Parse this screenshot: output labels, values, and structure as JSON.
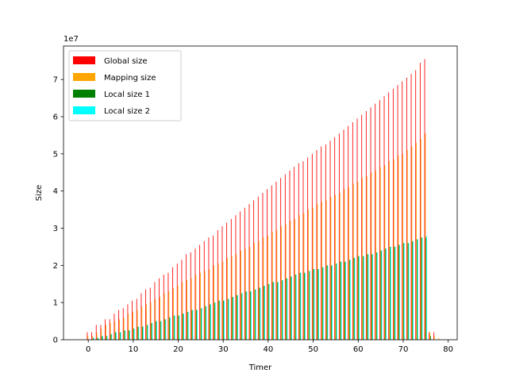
{
  "chart_data": {
    "type": "bar",
    "xlabel": "Timer",
    "ylabel": "Size",
    "offset_label": "1e7",
    "xlim": [
      -5.5,
      82
    ],
    "ylim": [
      0,
      7.9
    ],
    "xticks": [
      0,
      10,
      20,
      30,
      40,
      50,
      60,
      70,
      80
    ],
    "yticks": [
      0,
      1,
      2,
      3,
      4,
      5,
      6,
      7
    ],
    "y_unit_multiplier": 10000000,
    "legend_position": "top-left",
    "x": [
      0,
      1,
      2,
      3,
      4,
      5,
      6,
      7,
      8,
      9,
      10,
      11,
      12,
      13,
      14,
      15,
      16,
      17,
      18,
      19,
      20,
      21,
      22,
      23,
      24,
      25,
      26,
      27,
      28,
      29,
      30,
      31,
      32,
      33,
      34,
      35,
      36,
      37,
      38,
      39,
      40,
      41,
      42,
      43,
      44,
      45,
      46,
      47,
      48,
      49,
      50,
      51,
      52,
      53,
      54,
      55,
      56,
      57,
      58,
      59,
      60,
      61,
      62,
      63,
      64,
      65,
      66,
      67,
      68,
      69,
      70,
      71,
      72,
      73,
      74,
      75,
      76,
      77,
      78
    ],
    "series": [
      {
        "name": "Global size",
        "color": "#ff0000",
        "values": [
          0.2,
          0.2,
          0.4,
          0.4,
          0.55,
          0.55,
          0.7,
          0.8,
          0.85,
          0.95,
          1.05,
          1.1,
          1.25,
          1.35,
          1.4,
          1.55,
          1.65,
          1.75,
          1.8,
          1.95,
          2.05,
          2.15,
          2.3,
          2.35,
          2.45,
          2.55,
          2.65,
          2.75,
          2.8,
          2.95,
          3.05,
          3.15,
          3.25,
          3.35,
          3.45,
          3.55,
          3.65,
          3.75,
          3.85,
          3.95,
          4.05,
          4.15,
          4.25,
          4.35,
          4.45,
          4.55,
          4.65,
          4.75,
          4.8,
          4.9,
          5.0,
          5.1,
          5.2,
          5.25,
          5.35,
          5.45,
          5.55,
          5.65,
          5.75,
          5.85,
          5.95,
          6.05,
          6.15,
          6.25,
          6.35,
          6.45,
          6.55,
          6.65,
          6.75,
          6.85,
          6.95,
          7.05,
          7.15,
          7.25,
          7.45,
          7.55,
          0.2,
          0.2,
          0.0
        ]
      },
      {
        "name": "Mapping size",
        "color": "#ffa500",
        "values": [
          0.1,
          0.1,
          0.2,
          0.3,
          0.4,
          0.45,
          0.5,
          0.55,
          0.6,
          0.7,
          0.75,
          0.8,
          0.9,
          0.95,
          1.0,
          1.1,
          1.15,
          1.25,
          1.3,
          1.4,
          1.45,
          1.55,
          1.6,
          1.65,
          1.75,
          1.8,
          1.85,
          1.9,
          2.0,
          2.05,
          2.1,
          2.2,
          2.25,
          2.3,
          2.4,
          2.45,
          2.5,
          2.6,
          2.65,
          2.75,
          2.8,
          2.9,
          2.95,
          3.05,
          3.1,
          3.2,
          3.25,
          3.35,
          3.4,
          3.5,
          3.55,
          3.65,
          3.7,
          3.75,
          3.85,
          3.9,
          3.95,
          4.05,
          4.1,
          4.2,
          4.25,
          4.35,
          4.4,
          4.5,
          4.55,
          4.65,
          4.7,
          4.8,
          4.85,
          4.95,
          5.0,
          5.1,
          5.2,
          5.3,
          5.4,
          5.55,
          0.2,
          0.1,
          0.05
        ]
      },
      {
        "name": "Local size 1",
        "color": "#008000",
        "values": [
          0.0,
          0.05,
          0.05,
          0.1,
          0.1,
          0.15,
          0.2,
          0.2,
          0.25,
          0.25,
          0.3,
          0.35,
          0.35,
          0.4,
          0.45,
          0.5,
          0.5,
          0.55,
          0.6,
          0.65,
          0.65,
          0.7,
          0.75,
          0.8,
          0.8,
          0.85,
          0.9,
          0.95,
          1.0,
          1.05,
          1.05,
          1.1,
          1.15,
          1.2,
          1.25,
          1.3,
          1.3,
          1.35,
          1.4,
          1.45,
          1.5,
          1.55,
          1.55,
          1.6,
          1.65,
          1.7,
          1.75,
          1.8,
          1.8,
          1.85,
          1.9,
          1.9,
          1.95,
          2.0,
          2.0,
          2.05,
          2.1,
          2.1,
          2.15,
          2.2,
          2.25,
          2.25,
          2.3,
          2.3,
          2.35,
          2.4,
          2.45,
          2.5,
          2.5,
          2.55,
          2.6,
          2.6,
          2.65,
          2.7,
          2.75,
          2.75,
          0.1,
          0.0,
          0.0
        ]
      },
      {
        "name": "Local size 2",
        "color": "#00ffff",
        "values": [
          0.0,
          0.05,
          0.05,
          0.1,
          0.1,
          0.15,
          0.2,
          0.2,
          0.25,
          0.25,
          0.3,
          0.35,
          0.35,
          0.4,
          0.45,
          0.5,
          0.5,
          0.55,
          0.6,
          0.65,
          0.65,
          0.7,
          0.75,
          0.8,
          0.8,
          0.85,
          0.9,
          0.95,
          1.0,
          1.05,
          1.05,
          1.1,
          1.15,
          1.2,
          1.25,
          1.3,
          1.3,
          1.35,
          1.4,
          1.45,
          1.5,
          1.55,
          1.55,
          1.6,
          1.65,
          1.7,
          1.75,
          1.8,
          1.8,
          1.85,
          1.9,
          1.9,
          1.95,
          2.0,
          2.0,
          2.05,
          2.1,
          2.1,
          2.15,
          2.2,
          2.25,
          2.25,
          2.3,
          2.3,
          2.35,
          2.4,
          2.45,
          2.5,
          2.5,
          2.55,
          2.6,
          2.6,
          2.65,
          2.7,
          2.75,
          2.8,
          0.0,
          0.0,
          0.0
        ]
      }
    ]
  }
}
